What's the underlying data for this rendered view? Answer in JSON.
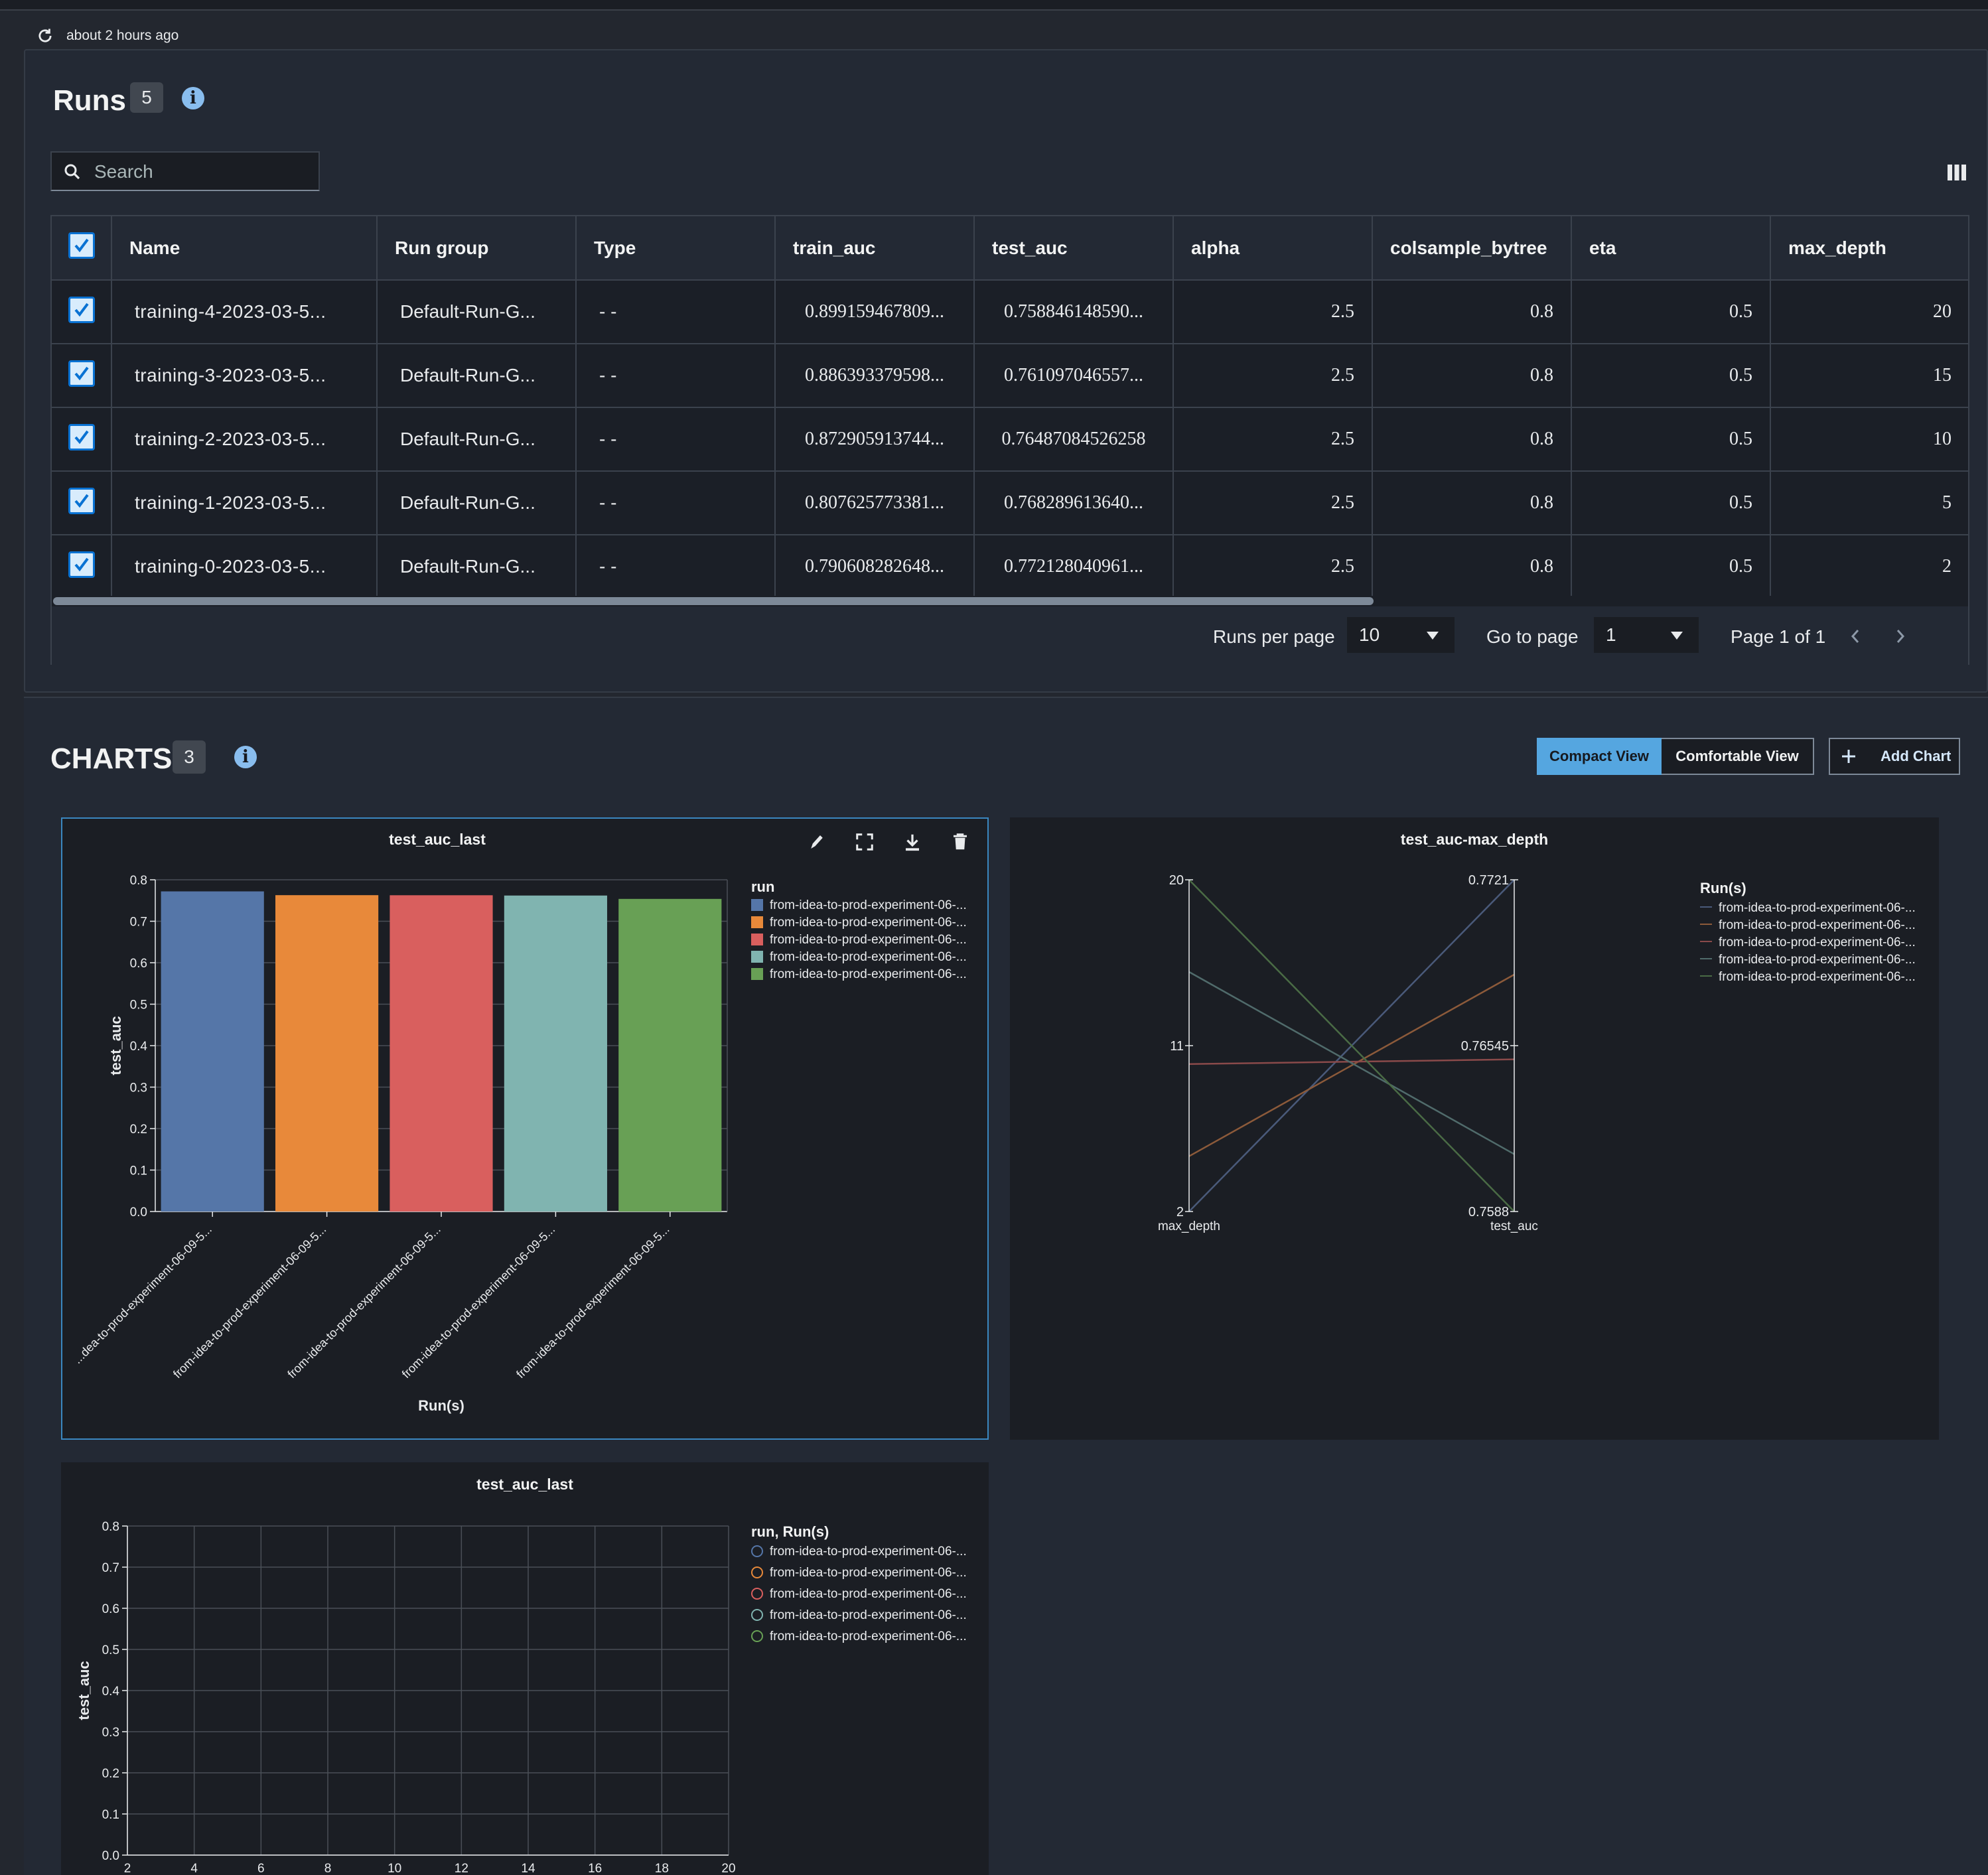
{
  "header": {
    "updated_text": "about 2 hours ago"
  },
  "runs": {
    "title": "Runs",
    "count": "5",
    "search_placeholder": "Search",
    "columns": [
      "Name",
      "Run group",
      "Type",
      "train_auc",
      "test_auc",
      "alpha",
      "colsample_bytree",
      "eta",
      "max_depth"
    ],
    "rows": [
      {
        "name": "training-4-2023-03-5...",
        "group": "Default-Run-G...",
        "type": "- -",
        "train_auc": "0.899159467809...",
        "test_auc": "0.758846148590...",
        "alpha": "2.5",
        "colsample": "0.8",
        "eta": "0.5",
        "max_depth": "20"
      },
      {
        "name": "training-3-2023-03-5...",
        "group": "Default-Run-G...",
        "type": "- -",
        "train_auc": "0.886393379598...",
        "test_auc": "0.761097046557...",
        "alpha": "2.5",
        "colsample": "0.8",
        "eta": "0.5",
        "max_depth": "15"
      },
      {
        "name": "training-2-2023-03-5...",
        "group": "Default-Run-G...",
        "type": "- -",
        "train_auc": "0.872905913744...",
        "test_auc": "0.76487084526258",
        "alpha": "2.5",
        "colsample": "0.8",
        "eta": "0.5",
        "max_depth": "10"
      },
      {
        "name": "training-1-2023-03-5...",
        "group": "Default-Run-G...",
        "type": "- -",
        "train_auc": "0.807625773381...",
        "test_auc": "0.768289613640...",
        "alpha": "2.5",
        "colsample": "0.8",
        "eta": "0.5",
        "max_depth": "5"
      },
      {
        "name": "training-0-2023-03-5...",
        "group": "Default-Run-G...",
        "type": "- -",
        "train_auc": "0.790608282648...",
        "test_auc": "0.772128040961...",
        "alpha": "2.5",
        "colsample": "0.8",
        "eta": "0.5",
        "max_depth": "2"
      }
    ],
    "pagination": {
      "runs_per_page_label": "Runs per page",
      "runs_per_page_value": "10",
      "go_to_page_label": "Go to page",
      "go_to_page_value": "1",
      "page_text": "Page 1 of 1"
    }
  },
  "charts_section": {
    "title": "CHARTS",
    "count": "3",
    "compact_view": "Compact View",
    "comfortable_view": "Comfortable View",
    "add_chart": "Add Chart"
  },
  "chart_data": [
    {
      "type": "bar",
      "title": "test_auc_last",
      "xlabel": "Run(s)",
      "ylabel": "test_auc",
      "ylim": [
        0,
        0.8
      ],
      "yticks": [
        "0.0",
        "0.1",
        "0.2",
        "0.3",
        "0.4",
        "0.5",
        "0.6",
        "0.7",
        "0.8"
      ],
      "categories": [
        "...dea-to-prod-experiment-06-09-5...",
        "from-idea-to-prod-experiment-06-09-5...",
        "from-idea-to-prod-experiment-06-09-5...",
        "from-idea-to-prod-experiment-06-09-5...",
        "from-idea-to-prod-experiment-06-09-5..."
      ],
      "values": [
        0.772,
        0.7629,
        0.7627,
        0.762,
        0.7539
      ],
      "colors": [
        "#5576a8",
        "#e8893a",
        "#d95f5e",
        "#80b4b0",
        "#68a055"
      ],
      "legend_title": "run",
      "legend": [
        "from-idea-to-prod-experiment-06-...",
        "from-idea-to-prod-experiment-06-...",
        "from-idea-to-prod-experiment-06-...",
        "from-idea-to-prod-experiment-06-...",
        "from-idea-to-prod-experiment-06-..."
      ]
    },
    {
      "type": "parallel-coordinates",
      "title": "test_auc-max_depth",
      "axes": [
        {
          "name": "max_depth",
          "ticks": [
            "20",
            "11",
            "2"
          ],
          "range": [
            2,
            20
          ]
        },
        {
          "name": "test_auc",
          "ticks": [
            "0.7721",
            "0.76545",
            "0.7588"
          ],
          "range": [
            0.7588,
            0.7721
          ]
        }
      ],
      "series": [
        {
          "max_depth": 2,
          "test_auc": 0.7721
        },
        {
          "max_depth": 5,
          "test_auc": 0.7683
        },
        {
          "max_depth": 10,
          "test_auc": 0.7649
        },
        {
          "max_depth": 15,
          "test_auc": 0.7611
        },
        {
          "max_depth": 20,
          "test_auc": 0.7588
        }
      ],
      "colors": [
        "#4a5a7a",
        "#8c5a3a",
        "#8a4a4a",
        "#506b6b",
        "#4a6b45"
      ],
      "legend_title": "Run(s)",
      "legend": [
        "from-idea-to-prod-experiment-06-...",
        "from-idea-to-prod-experiment-06-...",
        "from-idea-to-prod-experiment-06-...",
        "from-idea-to-prod-experiment-06-...",
        "from-idea-to-prod-experiment-06-..."
      ]
    },
    {
      "type": "scatter",
      "title": "test_auc_last",
      "ylabel": "test_auc",
      "ylim": [
        0,
        0.8
      ],
      "yticks": [
        "0.0",
        "0.1",
        "0.2",
        "0.3",
        "0.4",
        "0.5",
        "0.6",
        "0.7",
        "0.8"
      ],
      "xticks": [
        "2",
        "4",
        "6",
        "8",
        "10",
        "12",
        "14",
        "16",
        "18",
        "20"
      ],
      "colors": [
        "#5576a8",
        "#e8893a",
        "#d95f5e",
        "#80b4b0",
        "#68a055"
      ],
      "legend_title": "run, Run(s)",
      "legend": [
        "from-idea-to-prod-experiment-06-...",
        "from-idea-to-prod-experiment-06-...",
        "from-idea-to-prod-experiment-06-...",
        "from-idea-to-prod-experiment-06-...",
        "from-idea-to-prod-experiment-06-..."
      ]
    }
  ]
}
